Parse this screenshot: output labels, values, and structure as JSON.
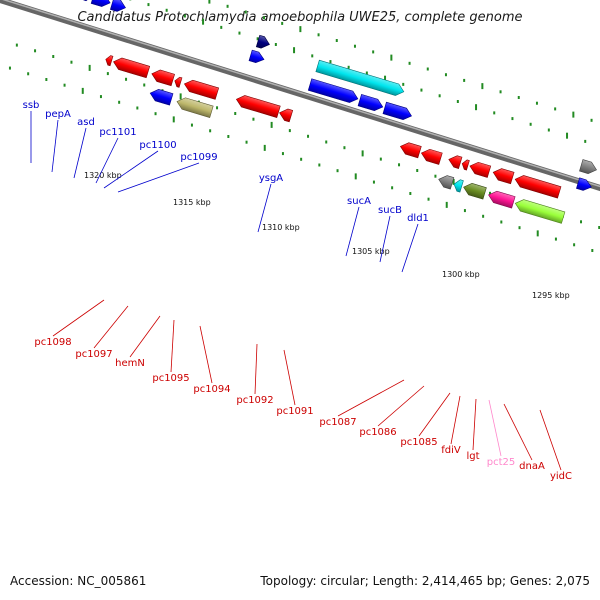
{
  "title": "Candidatus Protochlamydia amoebophila UWE25, complete genome",
  "footer": {
    "accession": "Accession: NC_005861",
    "topology": "Topology: circular; Length: 2,414,465 bp; Genes: 2,075"
  },
  "colors": {
    "forward_label": "#0000cc",
    "reverse_label": "#cc0000",
    "backbone": "#888888",
    "tick": "#228b22"
  },
  "kbp_markers": [
    "1320 kbp",
    "1315 kbp",
    "1310 kbp",
    "1305 kbp",
    "1300 kbp",
    "1295 kbp"
  ],
  "forward_genes": [
    "ssb",
    "pepA",
    "asd",
    "pc1101",
    "pc1100",
    "pc1099",
    "ysgA",
    "sucA",
    "sucB",
    "dld1"
  ],
  "reverse_genes": [
    "pc1098",
    "pc1097",
    "hemN",
    "pc1095",
    "pc1094",
    "pc1092",
    "pc1091",
    "pc1087",
    "pc1086",
    "pc1085",
    "fdiV",
    "lgt",
    "pct25",
    "dnaA",
    "yidC"
  ]
}
